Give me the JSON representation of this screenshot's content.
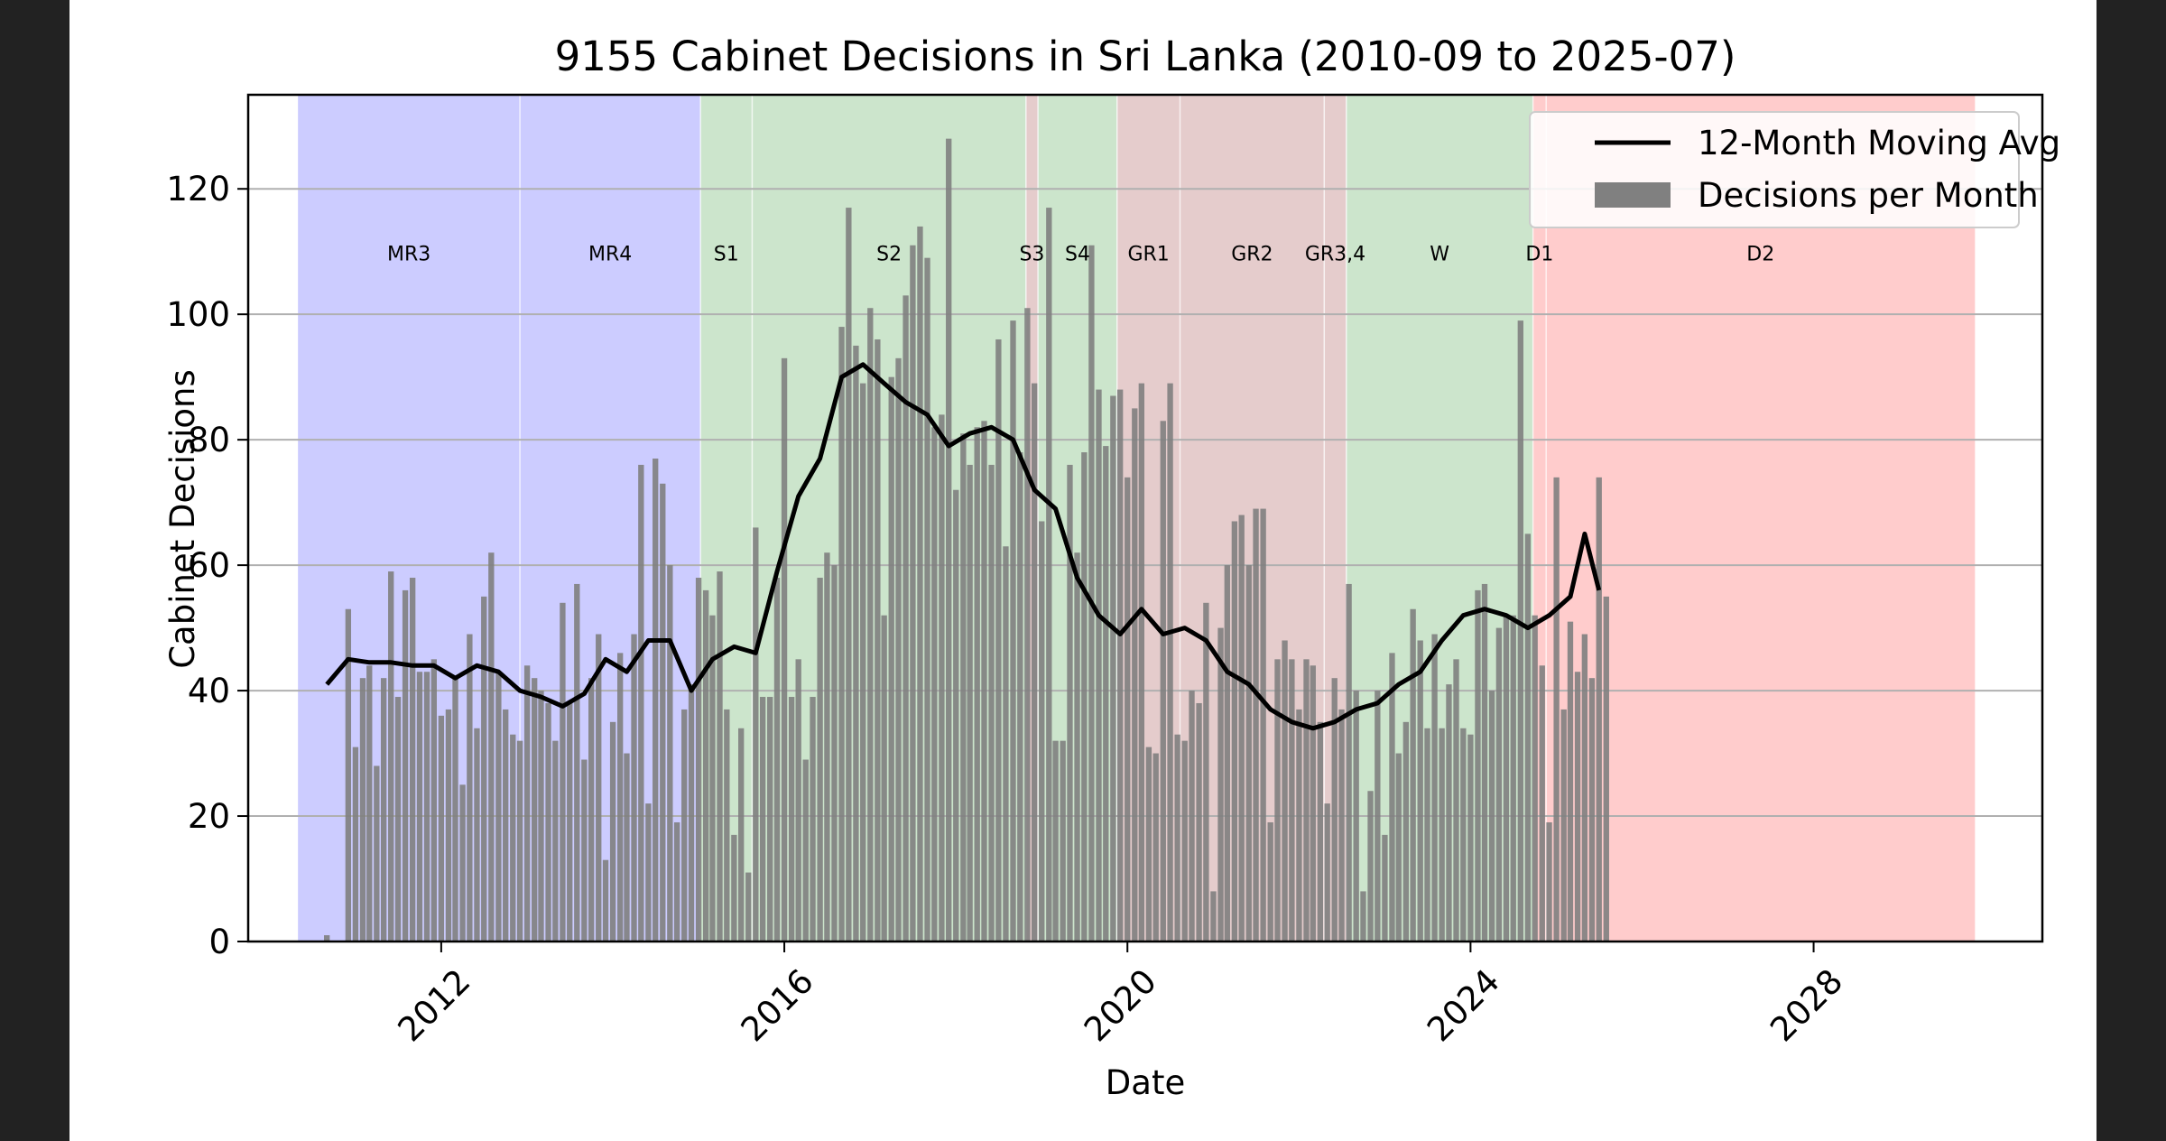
{
  "chart_data": {
    "type": "bar",
    "title": "9155 Cabinet Decisions in Sri Lanka (2010-09 to 2025-07)",
    "xlabel": "Date",
    "ylabel": "Cabinet Decisions",
    "xlim": [
      "2009-10-01",
      "2030-09-01"
    ],
    "ylim": [
      0,
      135
    ],
    "xticks": [
      {
        "date": "2012-01-01",
        "label": "2012"
      },
      {
        "date": "2016-01-01",
        "label": "2016"
      },
      {
        "date": "2020-01-01",
        "label": "2020"
      },
      {
        "date": "2024-01-01",
        "label": "2024"
      },
      {
        "date": "2028-01-01",
        "label": "2028"
      }
    ],
    "yticks": [
      0,
      20,
      40,
      60,
      80,
      100,
      120
    ],
    "grid": {
      "y": true,
      "x": false
    },
    "legend": {
      "placement": "top-right",
      "entries": [
        {
          "label": "12-Month Moving Avg",
          "kind": "line",
          "color": "#000000"
        },
        {
          "label": "Decisions per Month",
          "kind": "bar",
          "color": "#808080"
        }
      ]
    },
    "periods": [
      {
        "label": "MR3",
        "start": "2010-05-01",
        "end": "2012-12-01",
        "color": "#ccccff"
      },
      {
        "label": "MR4",
        "start": "2012-12-01",
        "end": "2015-01-09",
        "color": "#ccccff"
      },
      {
        "label": "S1",
        "start": "2015-01-09",
        "end": "2015-08-17",
        "color": "#cce5cc"
      },
      {
        "label": "S2",
        "start": "2015-08-17",
        "end": "2018-10-26",
        "color": "#cce5cc"
      },
      {
        "label": "S3",
        "start": "2018-10-26",
        "end": "2018-12-16",
        "color": "#e5cccc"
      },
      {
        "label": "S4",
        "start": "2018-12-16",
        "end": "2019-11-18",
        "color": "#cce5cc"
      },
      {
        "label": "GR1",
        "start": "2019-11-18",
        "end": "2020-08-12",
        "color": "#e5cccc"
      },
      {
        "label": "GR2",
        "start": "2020-08-12",
        "end": "2022-04-18",
        "color": "#e5cccc"
      },
      {
        "label": "GR3,4",
        "start": "2022-04-18",
        "end": "2022-07-21",
        "color": "#e5cccc"
      },
      {
        "label": "W",
        "start": "2022-07-21",
        "end": "2024-09-23",
        "color": "#cce5cc"
      },
      {
        "label": "D1",
        "start": "2024-09-23",
        "end": "2024-11-18",
        "color": "#ffcccc"
      },
      {
        "label": "D2",
        "start": "2024-11-18",
        "end": "2029-11-18",
        "color": "#ffcccc"
      }
    ],
    "bar_color": "#808080",
    "start_month": "2010-09",
    "monthly": [
      1,
      0,
      0,
      53,
      31,
      42,
      44,
      28,
      42,
      59,
      39,
      56,
      58,
      43,
      43,
      45,
      36,
      37,
      42,
      25,
      49,
      34,
      55,
      62,
      43,
      37,
      33,
      32,
      44,
      42,
      40,
      38,
      32,
      54,
      38,
      57,
      29,
      42,
      49,
      13,
      35,
      46,
      30,
      49,
      76,
      22,
      77,
      73,
      60,
      19,
      37,
      41,
      58,
      56,
      52,
      59,
      37,
      17,
      34,
      11,
      66,
      39,
      39,
      58,
      93,
      39,
      45,
      29,
      39,
      58,
      62,
      60,
      98,
      117,
      95,
      89,
      101,
      96,
      52,
      90,
      93,
      103,
      111,
      114,
      109,
      82,
      84,
      128,
      72,
      81,
      76,
      82,
      83,
      76,
      96,
      63,
      99,
      78,
      101,
      89,
      67,
      117,
      32,
      32,
      76,
      62,
      78,
      111,
      88,
      79,
      87,
      88,
      74,
      85,
      89,
      31,
      30,
      83,
      89,
      33,
      32,
      40,
      38,
      54,
      8,
      50,
      60,
      67,
      68,
      60,
      69,
      69,
      19,
      45,
      48,
      45,
      37,
      45,
      44,
      35,
      22,
      42,
      37,
      57,
      40,
      8,
      24,
      40,
      17,
      46,
      30,
      35,
      53,
      48,
      34,
      49,
      34,
      41,
      45,
      34,
      33,
      56,
      57,
      40,
      50,
      52,
      52,
      99,
      65,
      52,
      44,
      19,
      74,
      37,
      51,
      43,
      49,
      42,
      74,
      55
    ],
    "moving_avg": [
      {
        "date": "2010-09",
        "value": 41
      },
      {
        "date": "2010-12",
        "value": 45
      },
      {
        "date": "2011-03",
        "value": 44.5
      },
      {
        "date": "2011-06",
        "value": 44.5
      },
      {
        "date": "2011-09",
        "value": 44
      },
      {
        "date": "2011-12",
        "value": 44
      },
      {
        "date": "2012-03",
        "value": 42
      },
      {
        "date": "2012-06",
        "value": 44
      },
      {
        "date": "2012-09",
        "value": 43
      },
      {
        "date": "2012-12",
        "value": 40
      },
      {
        "date": "2013-03",
        "value": 39
      },
      {
        "date": "2013-06",
        "value": 37.5
      },
      {
        "date": "2013-09",
        "value": 39.5
      },
      {
        "date": "2013-12",
        "value": 45
      },
      {
        "date": "2014-03",
        "value": 43
      },
      {
        "date": "2014-06",
        "value": 48
      },
      {
        "date": "2014-09",
        "value": 48
      },
      {
        "date": "2014-12",
        "value": 40
      },
      {
        "date": "2015-03",
        "value": 45
      },
      {
        "date": "2015-06",
        "value": 47
      },
      {
        "date": "2015-09",
        "value": 46
      },
      {
        "date": "2015-12",
        "value": 59
      },
      {
        "date": "2016-03",
        "value": 71
      },
      {
        "date": "2016-06",
        "value": 77
      },
      {
        "date": "2016-09",
        "value": 90
      },
      {
        "date": "2016-12",
        "value": 92
      },
      {
        "date": "2017-03",
        "value": 89
      },
      {
        "date": "2017-06",
        "value": 86
      },
      {
        "date": "2017-09",
        "value": 84
      },
      {
        "date": "2017-12",
        "value": 79
      },
      {
        "date": "2018-03",
        "value": 81
      },
      {
        "date": "2018-06",
        "value": 82
      },
      {
        "date": "2018-09",
        "value": 80
      },
      {
        "date": "2018-12",
        "value": 72
      },
      {
        "date": "2019-03",
        "value": 69
      },
      {
        "date": "2019-06",
        "value": 58
      },
      {
        "date": "2019-09",
        "value": 52
      },
      {
        "date": "2019-12",
        "value": 49
      },
      {
        "date": "2020-03",
        "value": 53
      },
      {
        "date": "2020-06",
        "value": 49
      },
      {
        "date": "2020-09",
        "value": 50
      },
      {
        "date": "2020-12",
        "value": 48
      },
      {
        "date": "2021-03",
        "value": 43
      },
      {
        "date": "2021-06",
        "value": 41
      },
      {
        "date": "2021-09",
        "value": 37
      },
      {
        "date": "2021-12",
        "value": 35
      },
      {
        "date": "2022-03",
        "value": 34
      },
      {
        "date": "2022-06",
        "value": 35
      },
      {
        "date": "2022-09",
        "value": 37
      },
      {
        "date": "2022-12",
        "value": 38
      },
      {
        "date": "2023-03",
        "value": 41
      },
      {
        "date": "2023-06",
        "value": 43
      },
      {
        "date": "2023-09",
        "value": 48
      },
      {
        "date": "2023-12",
        "value": 52
      },
      {
        "date": "2024-03",
        "value": 53
      },
      {
        "date": "2024-06",
        "value": 52
      },
      {
        "date": "2024-09",
        "value": 50
      },
      {
        "date": "2024-12",
        "value": 52
      },
      {
        "date": "2025-03",
        "value": 55
      },
      {
        "date": "2025-05",
        "value": 65
      },
      {
        "date": "2025-07",
        "value": 56
      }
    ]
  }
}
